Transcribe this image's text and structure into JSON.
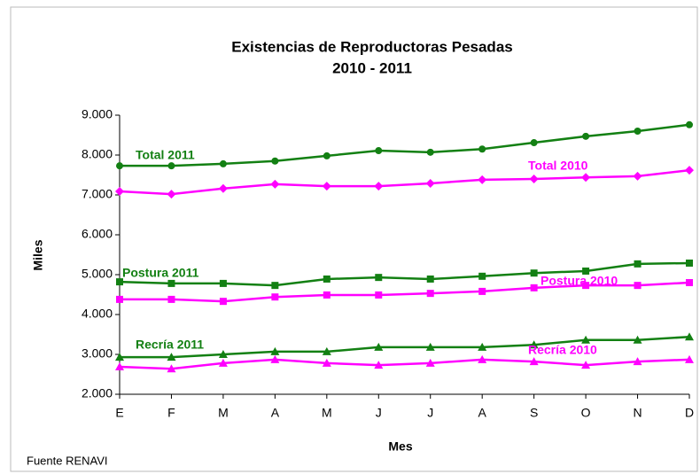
{
  "chart_data": {
    "type": "line",
    "title": "Existencias de Reproductoras Pesadas",
    "subtitle": "2010 - 2011",
    "x_label": "Mes",
    "y_label": "Miles",
    "source": "Fuente RENAVI",
    "categories": [
      "E",
      "F",
      "M",
      "A",
      "M",
      "J",
      "J",
      "A",
      "S",
      "O",
      "N",
      "D"
    ],
    "ylim": [
      2000,
      9000
    ],
    "yticks": [
      {
        "value": 2000,
        "label": "2.000"
      },
      {
        "value": 3000,
        "label": "3.000"
      },
      {
        "value": 4000,
        "label": "4.000"
      },
      {
        "value": 5000,
        "label": "5.000"
      },
      {
        "value": 6000,
        "label": "6.000"
      },
      {
        "value": 7000,
        "label": "7.000"
      },
      {
        "value": 8000,
        "label": "8.000"
      },
      {
        "value": 9000,
        "label": "9.000"
      }
    ],
    "grid": false,
    "series": [
      {
        "name": "Total 2011",
        "color": "#138013",
        "marker": "circle",
        "values": [
          7730,
          7730,
          7780,
          7850,
          7980,
          8110,
          8070,
          8150,
          8310,
          8470,
          8600,
          8760
        ]
      },
      {
        "name": "Total 2010",
        "color": "#ff00ff",
        "marker": "diamond",
        "values": [
          7090,
          7020,
          7160,
          7270,
          7220,
          7220,
          7290,
          7380,
          7400,
          7440,
          7470,
          7620
        ]
      },
      {
        "name": "Postura 2011",
        "color": "#138013",
        "marker": "square",
        "values": [
          4820,
          4780,
          4780,
          4730,
          4890,
          4930,
          4890,
          4960,
          5040,
          5090,
          5270,
          5290
        ]
      },
      {
        "name": "Postura 2010",
        "color": "#ff00ff",
        "marker": "square",
        "values": [
          4380,
          4380,
          4330,
          4440,
          4490,
          4490,
          4530,
          4580,
          4670,
          4730,
          4730,
          4800
        ]
      },
      {
        "name": "Recría 2011",
        "color": "#138013",
        "marker": "triangle",
        "values": [
          2930,
          2930,
          3000,
          3070,
          3070,
          3180,
          3180,
          3180,
          3240,
          3360,
          3360,
          3440
        ]
      },
      {
        "name": "Recría 2010",
        "color": "#ff00ff",
        "marker": "triangle",
        "values": [
          2690,
          2640,
          2780,
          2870,
          2780,
          2730,
          2780,
          2870,
          2820,
          2730,
          2820,
          2870
        ]
      }
    ]
  }
}
